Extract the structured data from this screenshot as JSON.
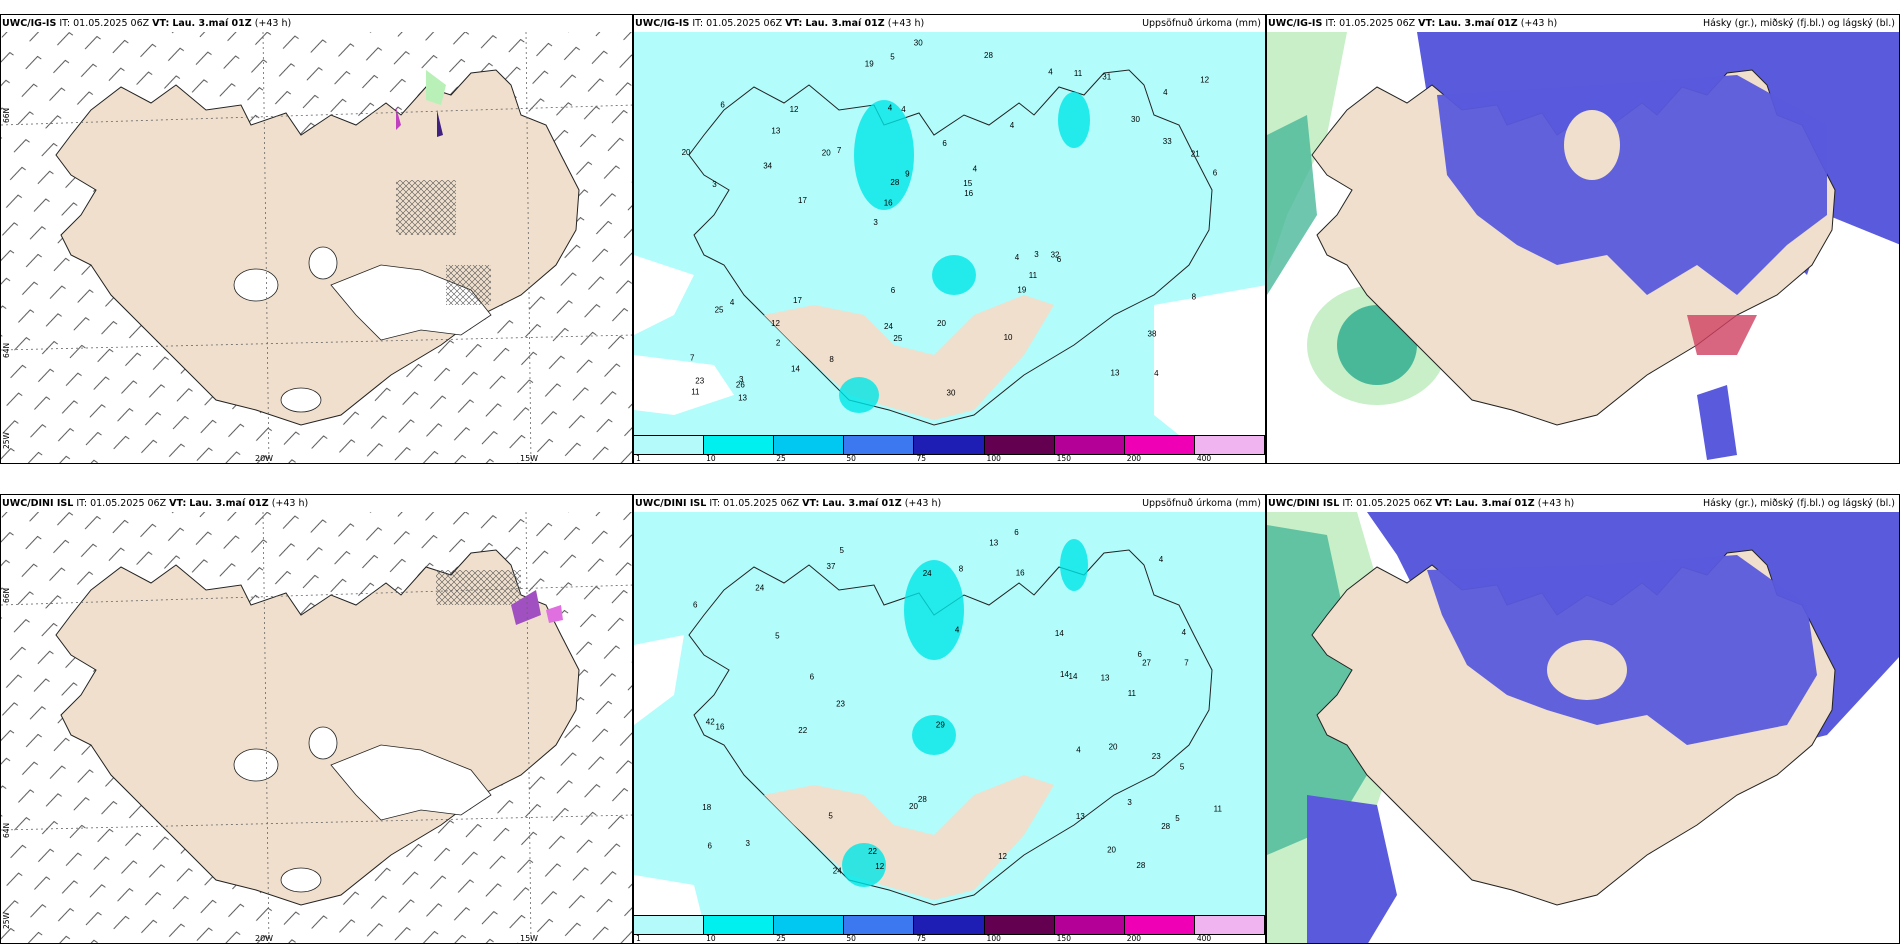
{
  "colors": {
    "land": "#efdfcc",
    "precip_light": "#b2fcfc",
    "precip_mid": "#00e6e6",
    "cloud_high": "#5a5adc",
    "cloud_mid": "#48b898",
    "cloud_low": "#c8efc8"
  },
  "top_row": {
    "wind": {
      "model": "UWC/IG-IS",
      "it": "IT: 01.05.2025 06Z",
      "vt_label": "VT:",
      "vt": "Lau. 3.maí 01Z",
      "lead": "(+43 h)"
    },
    "precip": {
      "model": "UWC/IG-IS",
      "it": "IT: 01.05.2025 06Z",
      "vt_label": "VT:",
      "vt": "Lau. 3.maí 01Z",
      "lead": "(+43 h)",
      "right": "Uppsöfnuð úrkoma (mm)"
    },
    "cloud": {
      "model": "UWC/IG-IS",
      "it": "IT: 01.05.2025 06Z",
      "vt_label": "VT:",
      "vt": "Lau. 3.maí 01Z",
      "lead": "(+43 h)",
      "right": "Hásky (gr.), miðský (fj.bl.) og lágský (bl.)"
    }
  },
  "bottom_row": {
    "wind": {
      "model": "UWC/DINI ISL",
      "it": "IT: 01.05.2025 06Z",
      "vt_label": "VT:",
      "vt": "Lau. 3.maí 01Z",
      "lead": "(+43 h)"
    },
    "precip": {
      "model": "UWC/DINI ISL",
      "it": "IT: 01.05.2025 06Z",
      "vt_label": "VT:",
      "vt": "Lau. 3.maí 01Z",
      "lead": "(+43 h)",
      "right": "Uppsöfnuð úrkoma (mm)"
    },
    "cloud": {
      "model": "UWC/DINI ISL",
      "it": "IT: 01.05.2025 06Z",
      "vt_label": "VT:",
      "vt": "Lau. 3.maí 01Z",
      "lead": "(+43 h)",
      "right": "Hásky (gr.), miðský (fj.bl.) og lágský (bl.)"
    }
  },
  "axis_labels": {
    "lat66": "66N",
    "lat64": "64N",
    "lon25": "25W",
    "lon20": "20W",
    "lon15": "15W"
  },
  "colorbar": {
    "ticks": [
      "1",
      "10",
      "25",
      "50",
      "75",
      "100",
      "150",
      "200",
      "400"
    ],
    "colors": [
      "#b4fafa",
      "#00f0f0",
      "#00c8f0",
      "#3c78f0",
      "#1e1eb4",
      "#640050",
      "#b40096",
      "#f000b4",
      "#f0b4f0"
    ]
  },
  "precip_values_top": [
    "4",
    "3",
    "4",
    "3",
    "4",
    "3",
    "4",
    "6",
    "4",
    "7",
    "7",
    "2",
    "4",
    "4",
    "6",
    "6",
    "5",
    "6",
    "4",
    "33",
    "16",
    "24",
    "28",
    "12",
    "4",
    "17",
    "13",
    "38",
    "32",
    "30",
    "20",
    "34",
    "19",
    "14",
    "21",
    "15",
    "23",
    "25",
    "16",
    "25",
    "30",
    "12",
    "11",
    "10",
    "12",
    "13",
    "11",
    "20",
    "31",
    "30",
    "17",
    "20",
    "13",
    "11",
    "26",
    "28",
    "19",
    "9",
    "8",
    "6",
    "8",
    "3"
  ],
  "precip_values_bottom": [
    "3",
    "4",
    "5",
    "4",
    "6",
    "5",
    "6",
    "5",
    "4",
    "5",
    "7",
    "6",
    "11",
    "12",
    "18",
    "24",
    "28",
    "37",
    "28",
    "27",
    "42",
    "16",
    "12",
    "14",
    "22",
    "20",
    "13",
    "16",
    "14",
    "11",
    "22",
    "13",
    "24",
    "29",
    "23",
    "20",
    "14",
    "24",
    "28",
    "23",
    "20",
    "13",
    "8",
    "6",
    "5",
    "4",
    "3",
    "6"
  ]
}
